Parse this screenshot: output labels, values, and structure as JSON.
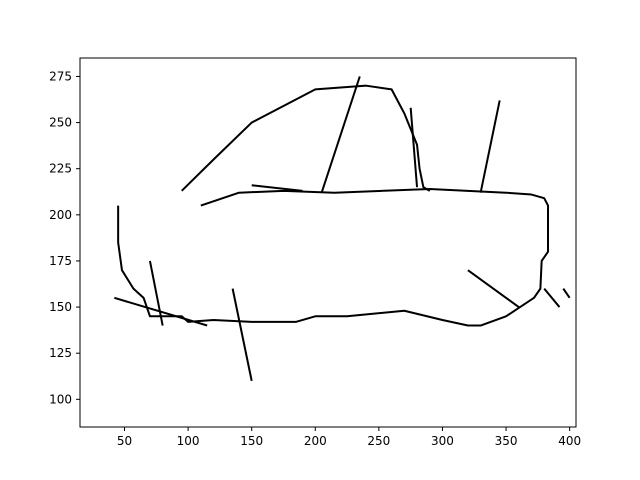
{
  "chart_data": {
    "type": "line",
    "title": "",
    "xlabel": "",
    "ylabel": "",
    "xlim": [
      15,
      405
    ],
    "ylim": [
      85,
      285
    ],
    "xticks": [
      50,
      100,
      150,
      200,
      250,
      300,
      350,
      400
    ],
    "yticks": [
      100,
      125,
      150,
      175,
      200,
      225,
      250,
      275
    ],
    "grid": false,
    "color": "#000000",
    "series": [
      {
        "x": [
          110,
          140,
          175,
          215,
          290,
          350,
          370,
          380,
          383,
          383,
          378,
          377,
          372,
          350,
          330,
          320,
          300,
          270,
          225,
          200,
          185,
          150,
          120,
          100,
          95,
          70,
          65,
          57,
          48,
          45,
          45
        ],
        "y": [
          205,
          212,
          213,
          212,
          214,
          212,
          211,
          209,
          205,
          180,
          175,
          160,
          155,
          145,
          140,
          140,
          143,
          148,
          145,
          145,
          142,
          142,
          143,
          142,
          145,
          145,
          155,
          160,
          170,
          185,
          205
        ]
      },
      {
        "x": [
          95,
          120,
          150,
          200,
          240,
          260,
          270,
          280,
          282,
          285,
          290
        ],
        "y": [
          213,
          230,
          250,
          268,
          270,
          268,
          255,
          238,
          225,
          215,
          213
        ]
      },
      {
        "x": [
          205,
          235
        ],
        "y": [
          212,
          275
        ]
      },
      {
        "x": [
          280,
          275
        ],
        "y": [
          215,
          258
        ]
      },
      {
        "x": [
          330,
          345
        ],
        "y": [
          212,
          262
        ]
      },
      {
        "x": [
          150,
          190
        ],
        "y": [
          216,
          213
        ]
      },
      {
        "x": [
          70,
          80
        ],
        "y": [
          175,
          140
        ]
      },
      {
        "x": [
          42,
          115
        ],
        "y": [
          155,
          140
        ]
      },
      {
        "x": [
          380,
          392
        ],
        "y": [
          160,
          150
        ]
      },
      {
        "x": [
          395,
          400
        ],
        "y": [
          160,
          155
        ]
      },
      {
        "x": [
          320,
          360
        ],
        "y": [
          170,
          150
        ]
      },
      {
        "x": [
          135,
          150
        ],
        "y": [
          160,
          110
        ]
      }
    ]
  }
}
